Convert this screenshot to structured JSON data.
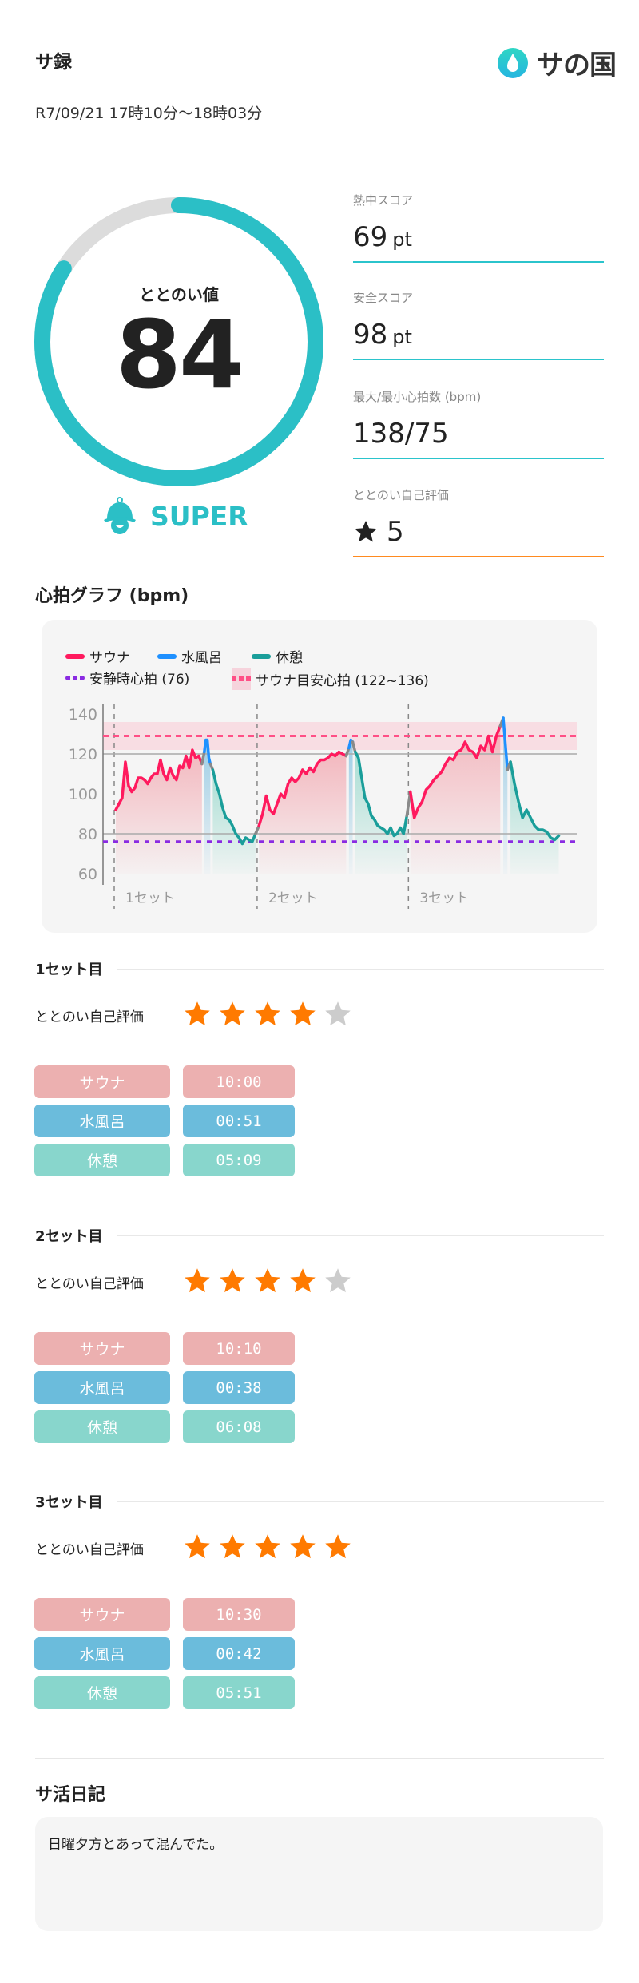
{
  "header": {
    "title": "サ録",
    "date": "R7/09/21 17時10分〜18時03分",
    "logo_text": "サの国"
  },
  "gauge": {
    "label": "ととのい値",
    "value": "84",
    "percent": 84,
    "rank": "SUPER",
    "rank_icon": "sauna-hat-icon",
    "color": "#2bbfc6",
    "track_color": "#dcdcdc"
  },
  "metrics": [
    {
      "label": "熱中スコア",
      "value": "69",
      "unit": "pt"
    },
    {
      "label": "安全スコア",
      "value": "98",
      "unit": "pt"
    },
    {
      "label": "最大/最小心拍数 (bpm)",
      "value": "138/75",
      "unit": ""
    },
    {
      "label": "ととのい自己評価",
      "value": "5",
      "unit": "",
      "icon": "star-icon"
    }
  ],
  "chart_title": "心拍グラフ (bpm)",
  "chart_data": {
    "type": "line",
    "ylim": [
      60,
      140
    ],
    "yticks": [
      "140",
      "120",
      "100",
      "80",
      "60"
    ],
    "gridlines": [
      120,
      80
    ],
    "legend": {
      "sauna": "サウナ",
      "cold": "水風呂",
      "rest": "休憩",
      "resting": "安静時心拍 (76)",
      "target": "サウナ目安心拍 (122~136)"
    },
    "colors": {
      "sauna": "#ff1a5e",
      "cold": "#1e90ff",
      "rest": "#1a9e9a",
      "transition": "#8a8a8a",
      "resting": "#8a2be2",
      "target": "#ff4f86"
    },
    "resting_hr": 76,
    "target_range": [
      122,
      136
    ],
    "target_mid": 129,
    "sets": [
      {
        "label": "1セット",
        "phases": [
          {
            "type": "sauna",
            "duration": "10:00",
            "hr": [
              92,
              95,
              98,
              116,
              104,
              101,
              103,
              108,
              108,
              107,
              105,
              108,
              110,
              110,
              117,
              110,
              107,
              113,
              109,
              107,
              114,
              113,
              119,
              113,
              122,
              118,
              119,
              115
            ]
          },
          {
            "type": "cold",
            "duration": "00:51",
            "hr": [
              121,
              127,
              127,
              118,
              115
            ]
          },
          {
            "type": "rest",
            "duration": "05:09",
            "hr": [
              112,
              105,
              100,
              93,
              88,
              87,
              84,
              80,
              78,
              75,
              78,
              77,
              76,
              80
            ]
          }
        ]
      },
      {
        "label": "2セット",
        "phases": [
          {
            "type": "sauna",
            "duration": "10:10",
            "hr": [
              84,
              90,
              99,
              92,
              90,
              95,
              100,
              98,
              105,
              108,
              106,
              108,
              112,
              110,
              113,
              111,
              115,
              117,
              117,
              118,
              120,
              119,
              121,
              120,
              119
            ]
          },
          {
            "type": "cold",
            "duration": "00:38",
            "hr": [
              123,
              127,
              126
            ]
          },
          {
            "type": "rest",
            "duration": "06:08",
            "hr": [
              121,
              118,
              108,
              98,
              95,
              89,
              87,
              84,
              83,
              82,
              80,
              83,
              79,
              80,
              83,
              80,
              89
            ]
          }
        ]
      },
      {
        "label": "3セット",
        "phases": [
          {
            "type": "sauna",
            "duration": "10:30",
            "hr": [
              101,
              88,
              93,
              96,
              102,
              104,
              107,
              109,
              111,
              115,
              118,
              117,
              121,
              122,
              126,
              122,
              121,
              118,
              124,
              122,
              129,
              121,
              129,
              134
            ]
          },
          {
            "type": "cold",
            "duration": "00:42",
            "hr": [
              138,
              125,
              112
            ]
          },
          {
            "type": "rest",
            "duration": "05:51",
            "hr": [
              116,
              105,
              96,
              88,
              92,
              88,
              84,
              82,
              82,
              81,
              78,
              77,
              79
            ]
          }
        ]
      }
    ]
  },
  "sets": [
    {
      "title": "1セット目",
      "rating_label": "ととのい自己評価",
      "rating": 4,
      "rows": [
        {
          "label": "サウナ",
          "value": "10:00"
        },
        {
          "label": "水風呂",
          "value": "00:51"
        },
        {
          "label": "休憩",
          "value": "05:09"
        }
      ]
    },
    {
      "title": "2セット目",
      "rating_label": "ととのい自己評価",
      "rating": 4,
      "rows": [
        {
          "label": "サウナ",
          "value": "10:10"
        },
        {
          "label": "水風呂",
          "value": "00:38"
        },
        {
          "label": "休憩",
          "value": "06:08"
        }
      ]
    },
    {
      "title": "3セット目",
      "rating_label": "ととのい自己評価",
      "rating": 5,
      "rows": [
        {
          "label": "サウナ",
          "value": "10:30"
        },
        {
          "label": "水風呂",
          "value": "00:42"
        },
        {
          "label": "休憩",
          "value": "05:51"
        }
      ]
    }
  ],
  "chip_colors": [
    "#ecb0b0",
    "#6bbcdc",
    "#88d6cc"
  ],
  "star_colors": {
    "on": "#ff7a00",
    "off": "#cccccc"
  },
  "diary": {
    "title": "サ活日記",
    "text": "日曜夕方とあって混んでた。"
  }
}
